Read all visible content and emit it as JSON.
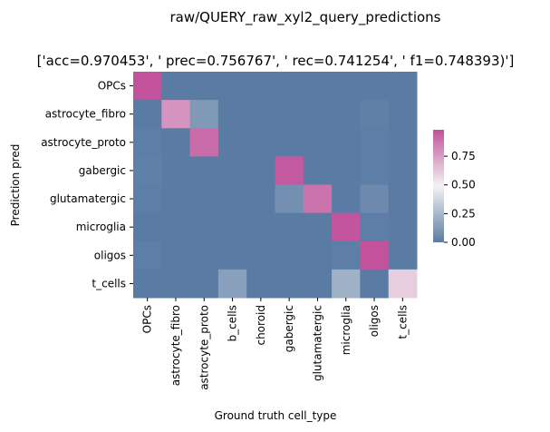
{
  "chart_data": {
    "type": "heatmap",
    "title": "raw/QUERY_raw_xyl2_query_predictions",
    "subtitle": "['acc=0.970453', '  prec=0.756767', ' rec=0.741254', ' f1=0.748393)']",
    "xlabel": "Ground truth cell_type",
    "ylabel": "Prediction pred",
    "x_categories": [
      "OPCs",
      "astrocyte_fibro",
      "astrocyte_proto",
      "b_cells",
      "choroid",
      "gabergic",
      "glutamatergic",
      "microglia",
      "oligos",
      "t_cells"
    ],
    "y_categories": [
      "OPCs",
      "astrocyte_fibro",
      "astrocyte_proto",
      "gabergic",
      "glutamatergic",
      "microglia",
      "oligos",
      "t_cells"
    ],
    "values": [
      [
        0.98,
        0.0,
        0.0,
        0.0,
        0.0,
        0.0,
        0.0,
        0.0,
        0.0,
        0.0
      ],
      [
        0.0,
        0.78,
        0.12,
        0.0,
        0.0,
        0.0,
        0.0,
        0.0,
        0.02,
        0.0
      ],
      [
        0.01,
        0.0,
        0.9,
        0.0,
        0.0,
        0.0,
        0.0,
        0.0,
        0.01,
        0.0
      ],
      [
        0.02,
        0.0,
        0.0,
        0.0,
        0.0,
        0.96,
        0.0,
        0.0,
        0.01,
        0.0
      ],
      [
        0.01,
        0.0,
        0.0,
        0.0,
        0.0,
        0.08,
        0.88,
        0.0,
        0.06,
        0.0
      ],
      [
        0.0,
        0.0,
        0.0,
        0.0,
        0.0,
        0.0,
        0.0,
        0.97,
        0.01,
        0.0
      ],
      [
        0.01,
        0.0,
        0.0,
        0.0,
        0.0,
        0.0,
        0.0,
        0.01,
        0.98,
        0.0
      ],
      [
        0.0,
        0.0,
        0.0,
        0.15,
        0.0,
        0.0,
        0.0,
        0.22,
        0.0,
        0.6
      ]
    ],
    "colorbar": {
      "ticks": [
        "0.00",
        "0.25",
        "0.50",
        "0.75"
      ],
      "vmin": 0,
      "vmax": 0.98
    },
    "colormap": {
      "low": "#5a7ca4",
      "mid": "#f2f2f2",
      "high": "#c1529b"
    }
  }
}
